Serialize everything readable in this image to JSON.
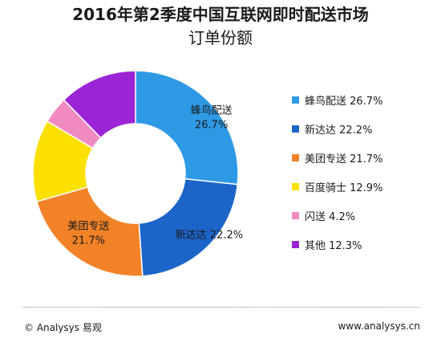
{
  "title_line1": "2016年第2季度中国互联网即时配送市场",
  "title_line2": "订单份额",
  "chart_data": {
    "type": "pie",
    "donut": true,
    "title": "2016年第2季度中国互联网即时配送市场订单份额",
    "legend_position": "right",
    "slices": [
      {
        "name": "蜂鸟配送",
        "value": 26.7,
        "color": "#2e9ae6"
      },
      {
        "name": "新达达",
        "value": 22.2,
        "color": "#1c64c8"
      },
      {
        "name": "美团专送",
        "value": 21.7,
        "color": "#f28228"
      },
      {
        "name": "百度骑士",
        "value": 12.9,
        "color": "#fbe000"
      },
      {
        "name": "闪送",
        "value": 4.2,
        "color": "#f18ac0"
      },
      {
        "name": "其他",
        "value": 12.3,
        "color": "#9a24d6"
      }
    ],
    "data_labels": [
      {
        "name": "蜂鸟配送",
        "value": "26.7%"
      },
      {
        "name": "新达达",
        "value": "22.2%"
      },
      {
        "name": "美团专送",
        "value": "21.7%"
      }
    ]
  },
  "legend": [
    {
      "label": "蜂鸟配送 26.7%",
      "color": "#2e9ae6"
    },
    {
      "label": "新达达 22.2%",
      "color": "#1c64c8"
    },
    {
      "label": "美团专送 21.7%",
      "color": "#f28228"
    },
    {
      "label": "百度骑士 12.9%",
      "color": "#fbe000"
    },
    {
      "label": "闪送 4.2%",
      "color": "#f18ac0"
    },
    {
      "label": "其他 12.3%",
      "color": "#9a24d6"
    }
  ],
  "footer": {
    "copyright": "© Analysys 易观",
    "url": "www.analysys.cn"
  }
}
